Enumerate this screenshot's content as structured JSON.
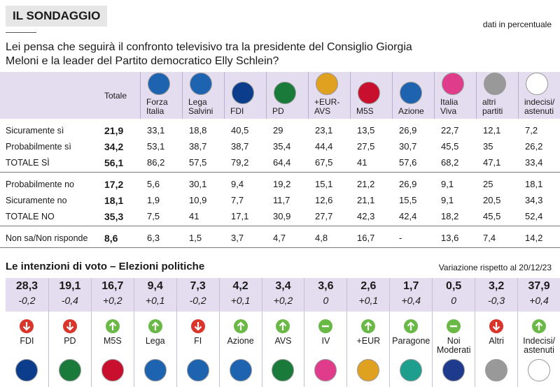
{
  "header": {
    "title": "IL SONDAGGIO",
    "note": "dati in percentuale",
    "question": "Lei pensa che seguirà il confronto televisivo tra la presidente del Consiglio Giorgia Meloni e la leader del Partito democratico Elly Schlein?"
  },
  "table": {
    "columns": [
      "Totale",
      "Forza Italia",
      "Lega Salvini",
      "FDI",
      "PD",
      "+EUR-AVS",
      "M5S",
      "Azione",
      "Italia Viva",
      "altri partiti",
      "indecisi/ astenuti"
    ],
    "groups": [
      {
        "rows": [
          {
            "label": "Sicuramente sì",
            "cells": [
              "21,9",
              "33,1",
              "18,8",
              "40,5",
              "29",
              "23,1",
              "13,5",
              "26,9",
              "22,7",
              "12,1",
              "7,2"
            ]
          },
          {
            "label": "Probabilmente sì",
            "cells": [
              "34,2",
              "53,1",
              "38,7",
              "38,7",
              "35,4",
              "44,4",
              "27,5",
              "30,7",
              "45,5",
              "35",
              "26,2"
            ]
          },
          {
            "label": "TOTALE SÌ",
            "cells": [
              "56,1",
              "86,2",
              "57,5",
              "79,2",
              "64,4",
              "67,5",
              "41",
              "57,6",
              "68,2",
              "47,1",
              "33,4"
            ]
          }
        ]
      },
      {
        "rows": [
          {
            "label": "Probabilmente no",
            "cells": [
              "17,2",
              "5,6",
              "30,1",
              "9,4",
              "19,2",
              "15,1",
              "21,2",
              "26,9",
              "9,1",
              "25",
              "18,1"
            ]
          },
          {
            "label": "Sicuramente no",
            "cells": [
              "18,1",
              "1,9",
              "10,9",
              "7,7",
              "11,7",
              "12,6",
              "21,1",
              "15,5",
              "9,1",
              "20,5",
              "34,3"
            ]
          },
          {
            "label": "TOTALE NO",
            "cells": [
              "35,3",
              "7,5",
              "41",
              "17,1",
              "30,9",
              "27,7",
              "42,3",
              "42,4",
              "18,2",
              "45,5",
              "52,4"
            ]
          }
        ]
      },
      {
        "rows": [
          {
            "label": "Non sa/Non risponde",
            "cells": [
              "8,6",
              "6,3",
              "1,5",
              "3,7",
              "4,7",
              "4,8",
              "16,7",
              "-",
              "13,6",
              "7,4",
              "14,2"
            ]
          }
        ]
      }
    ]
  },
  "votes": {
    "title": "Le intenzioni di voto – Elezioni politiche",
    "note": "Variazione rispetto al 20/12/23",
    "parties": [
      {
        "name": "FDI",
        "value": "28,3",
        "change": "-0,2",
        "trend": "down"
      },
      {
        "name": "PD",
        "value": "19,1",
        "change": "-0,4",
        "trend": "down"
      },
      {
        "name": "M5S",
        "value": "16,7",
        "change": "+0,2",
        "trend": "up"
      },
      {
        "name": "Lega",
        "value": "9,4",
        "change": "+0,1",
        "trend": "up"
      },
      {
        "name": "FI",
        "value": "7,3",
        "change": "-0,2",
        "trend": "down"
      },
      {
        "name": "Azione",
        "value": "4,2",
        "change": "+0,1",
        "trend": "up"
      },
      {
        "name": "AVS",
        "value": "3,4",
        "change": "+0,2",
        "trend": "up"
      },
      {
        "name": "IV",
        "value": "3,6",
        "change": "0",
        "trend": "flat"
      },
      {
        "name": "+EUR",
        "value": "2,6",
        "change": "+0,1",
        "trend": "up"
      },
      {
        "name": "Paragone",
        "value": "1,7",
        "change": "+0,4",
        "trend": "up"
      },
      {
        "name": "Noi Moderati",
        "value": "0,5",
        "change": "0",
        "trend": "flat"
      },
      {
        "name": "Altri",
        "value": "3,2",
        "change": "-0,3",
        "trend": "down"
      },
      {
        "name": "Indecisi/ astenuti",
        "value": "37,9",
        "change": "+0,4",
        "trend": "up"
      }
    ]
  }
}
